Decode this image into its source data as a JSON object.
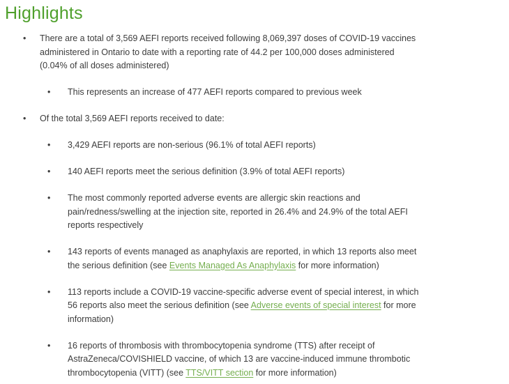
{
  "title": "Highlights",
  "colors": {
    "heading": "#4fa02c",
    "link": "#74ae4e",
    "body_text": "#3c3c3c",
    "background": "#ffffff"
  },
  "bullet_glyph": "•",
  "bullets": [
    {
      "level": 1,
      "runs": [
        {
          "text": "There are a total of 3,569 AEFI reports received following 8,069,397 doses of COVID-19 vaccines"
        },
        {
          "br": true
        },
        {
          "text": "administered in Ontario to date with a reporting rate of 44.2 per 100,000 doses administered"
        },
        {
          "br": true
        },
        {
          "text": "(0.04% of all doses administered)"
        }
      ]
    },
    {
      "level": 2,
      "runs": [
        {
          "text": "This represents an increase of 477 AEFI reports compared to previous week"
        }
      ]
    },
    {
      "level": 1,
      "runs": [
        {
          "text": "Of the total 3,569 AEFI reports received to date:"
        }
      ]
    },
    {
      "level": 2,
      "runs": [
        {
          "text": "3,429 AEFI reports are non-serious (96.1% of total AEFI reports)"
        }
      ]
    },
    {
      "level": 2,
      "runs": [
        {
          "text": "140 AEFI reports meet the serious definition (3.9% of total AEFI reports)"
        }
      ]
    },
    {
      "level": 2,
      "runs": [
        {
          "text": "The most commonly reported adverse events are allergic skin reactions and"
        },
        {
          "br": true
        },
        {
          "text": "pain/redness/swelling at the injection site, reported in 26.4% and 24.9% of the total AEFI"
        },
        {
          "br": true
        },
        {
          "text": "reports respectively"
        }
      ]
    },
    {
      "level": 2,
      "runs": [
        {
          "text": "143 reports of events managed as anaphylaxis are reported, in which 13 reports also meet"
        },
        {
          "br": true
        },
        {
          "text": "the serious definition (see "
        },
        {
          "text": "Events Managed As Anaphylaxis",
          "link": true,
          "name": "events-managed-as-anaphylaxis-link"
        },
        {
          "text": " for more information)"
        }
      ]
    },
    {
      "level": 2,
      "runs": [
        {
          "text": "113 reports include a COVID-19 vaccine-specific adverse event of special interest, in which"
        },
        {
          "br": true
        },
        {
          "text": "56 reports also meet the serious definition (see "
        },
        {
          "text": "Adverse events of special interest",
          "link": true,
          "name": "adverse-events-of-special-interest-link"
        },
        {
          "text": " for more"
        },
        {
          "br": true
        },
        {
          "text": "information)"
        }
      ]
    },
    {
      "level": 2,
      "runs": [
        {
          "text": "16 reports of thrombosis with thrombocytopenia syndrome (TTS) after receipt of"
        },
        {
          "br": true
        },
        {
          "text": "AstraZeneca/COVISHIELD vaccine, of which 13 are vaccine-induced immune thrombotic"
        },
        {
          "br": true
        },
        {
          "text": "thrombocytopenia (VITT) (see "
        },
        {
          "text": "TTS/VITT section",
          "link": true,
          "name": "tts-vitt-section-link"
        },
        {
          "text": " for more information)"
        }
      ]
    }
  ]
}
